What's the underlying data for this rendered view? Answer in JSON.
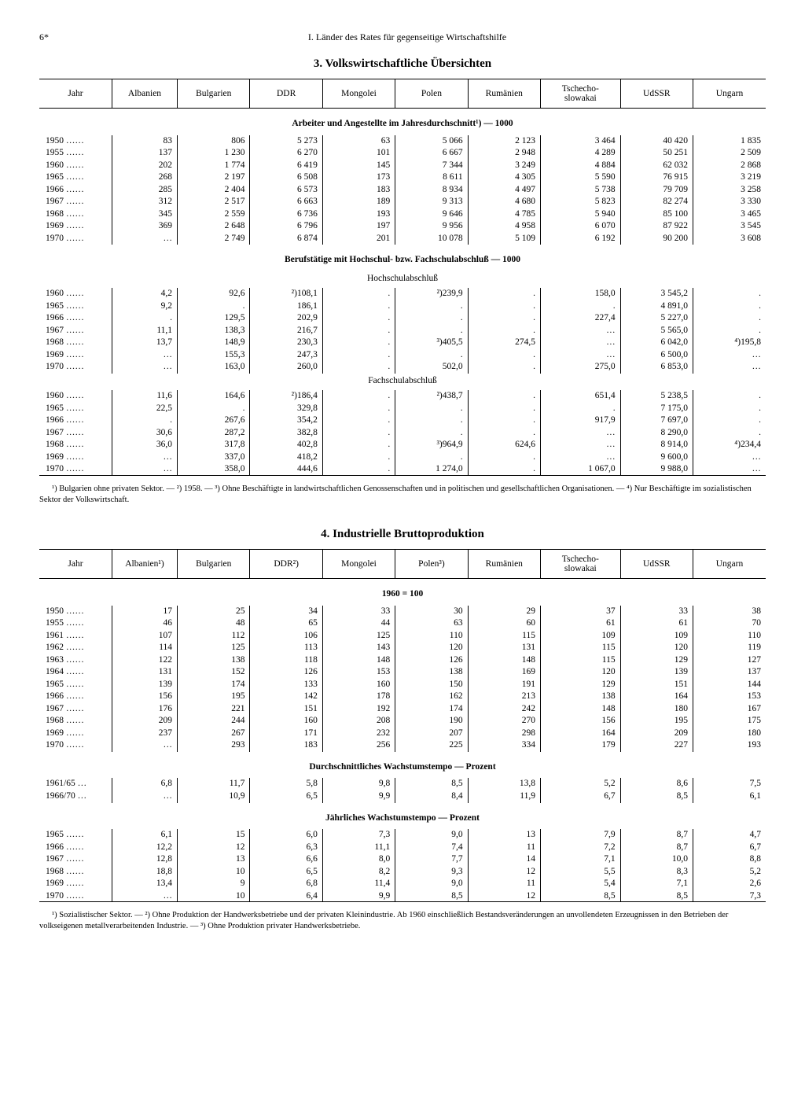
{
  "page_number": "6*",
  "header": "I. Länder des Rates für gegenseitige Wirtschaftshilfe",
  "section3": {
    "title": "3. Volkswirtschaftliche Übersichten",
    "columns": [
      "Jahr",
      "Albanien",
      "Bulgarien",
      "DDR",
      "Mongolei",
      "Polen",
      "Rumänien",
      "Tschecho-slowakai",
      "UdSSR",
      "Ungarn"
    ],
    "block1": {
      "heading": "Arbeiter und Angestellte im Jahresdurchschnitt¹)  —  1000",
      "rows": [
        [
          "1950  ……",
          "83",
          "806",
          "5 273",
          "63",
          "5 066",
          "2 123",
          "3 464",
          "40 420",
          "1 835"
        ],
        [
          "1955  ……",
          "137",
          "1 230",
          "6 270",
          "101",
          "6 667",
          "2 948",
          "4 289",
          "50 251",
          "2 509"
        ],
        [
          "1960  ……",
          "202",
          "1 774",
          "6 419",
          "145",
          "7 344",
          "3 249",
          "4 884",
          "62 032",
          "2 868"
        ],
        [
          "1965  ……",
          "268",
          "2 197",
          "6 508",
          "173",
          "8 611",
          "4 305",
          "5 590",
          "76 915",
          "3 219"
        ],
        [
          "1966  ……",
          "285",
          "2 404",
          "6 573",
          "183",
          "8 934",
          "4 497",
          "5 738",
          "79 709",
          "3 258"
        ],
        [
          "1967  ……",
          "312",
          "2 517",
          "6 663",
          "189",
          "9 313",
          "4 680",
          "5 823",
          "82 274",
          "3 330"
        ],
        [
          "1968  ……",
          "345",
          "2 559",
          "6 736",
          "193",
          "9 646",
          "4 785",
          "5 940",
          "85 100",
          "3 465"
        ],
        [
          "1969  ……",
          "369",
          "2 648",
          "6 796",
          "197",
          "9 956",
          "4 958",
          "6 070",
          "87 922",
          "3 545"
        ],
        [
          "1970  ……",
          "…",
          "2 749",
          "6 874",
          "201",
          "10 078",
          "5 109",
          "6 192",
          "90 200",
          "3 608"
        ]
      ]
    },
    "block2": {
      "heading": "Berufstätige mit Hochschul- bzw. Fachschulabschluß  —  1000",
      "sub1": "Hochschulabschluß",
      "rows1": [
        [
          "1960  ……",
          "4,2",
          "92,6",
          "²)108,1",
          ".",
          "²)239,9",
          ".",
          "158,0",
          "3 545,2",
          "."
        ],
        [
          "1965  ……",
          "9,2",
          ".",
          "186,1",
          ".",
          ".",
          ".",
          ".",
          "4 891,0",
          "."
        ],
        [
          "1966  ……",
          ".",
          "129,5",
          "202,9",
          ".",
          ".",
          ".",
          "227,4",
          "5 227,0",
          "."
        ],
        [
          "1967  ……",
          "11,1",
          "138,3",
          "216,7",
          ".",
          ".",
          ".",
          "…",
          "5 565,0",
          "."
        ],
        [
          "1968  ……",
          "13,7",
          "148,9",
          "230,3",
          ".",
          "³)405,5",
          "274,5",
          "…",
          "6 042,0",
          "⁴)195,8"
        ],
        [
          "1969  ……",
          "…",
          "155,3",
          "247,3",
          ".",
          ".",
          ".",
          "…",
          "6 500,0",
          "…"
        ],
        [
          "1970  ……",
          "…",
          "163,0",
          "260,0",
          ".",
          "502,0",
          ".",
          "275,0",
          "6 853,0",
          "…"
        ]
      ],
      "sub2": "Fachschulabschluß",
      "rows2": [
        [
          "1960  ……",
          "11,6",
          "164,6",
          "²)186,4",
          ".",
          "²)438,7",
          ".",
          "651,4",
          "5 238,5",
          "."
        ],
        [
          "1965  ……",
          "22,5",
          ".",
          "329,8",
          ".",
          ".",
          ".",
          ".",
          "7 175,0",
          "."
        ],
        [
          "1966  ……",
          ".",
          "267,6",
          "354,2",
          ".",
          ".",
          ".",
          "917,9",
          "7 697,0",
          "."
        ],
        [
          "1967  ……",
          "30,6",
          "287,2",
          "382,8",
          ".",
          ".",
          ".",
          "…",
          "8 290,0",
          "."
        ],
        [
          "1968  ……",
          "36,0",
          "317,8",
          "402,8",
          ".",
          "³)964,9",
          "624,6",
          "…",
          "8 914,0",
          "⁴)234,4"
        ],
        [
          "1969  ……",
          "…",
          "337,0",
          "418,2",
          ".",
          ".",
          ".",
          "…",
          "9 600,0",
          "…"
        ],
        [
          "1970  ……",
          "…",
          "358,0",
          "444,6",
          ".",
          "1 274,0",
          ".",
          "1 067,0",
          "9 988,0",
          "…"
        ]
      ]
    },
    "footnotes": "¹) Bulgarien ohne privaten Sektor.  —  ²) 1958.  —  ³) Ohne Beschäftigte in landwirtschaftlichen Genossenschaften und in politischen und gesellschaftlichen Organisationen.  —  ⁴) Nur Beschäftigte im sozialistischen Sektor der Volkswirtschaft."
  },
  "section4": {
    "title": "4. Industrielle Bruttoproduktion",
    "columns": [
      "Jahr",
      "Albanien¹)",
      "Bulgarien",
      "DDR²)",
      "Mongolei",
      "Polen³)",
      "Rumänien",
      "Tschecho-slowakai",
      "UdSSR",
      "Ungarn"
    ],
    "block1": {
      "heading": "1960 = 100",
      "rows": [
        [
          "1950  ……",
          "17",
          "25",
          "34",
          "33",
          "30",
          "29",
          "37",
          "33",
          "38"
        ],
        [
          "1955  ……",
          "46",
          "48",
          "65",
          "44",
          "63",
          "60",
          "61",
          "61",
          "70"
        ],
        [
          "1961  ……",
          "107",
          "112",
          "106",
          "125",
          "110",
          "115",
          "109",
          "109",
          "110"
        ],
        [
          "1962  ……",
          "114",
          "125",
          "113",
          "143",
          "120",
          "131",
          "115",
          "120",
          "119"
        ],
        [
          "1963  ……",
          "122",
          "138",
          "118",
          "148",
          "126",
          "148",
          "115",
          "129",
          "127"
        ],
        [
          "1964  ……",
          "131",
          "152",
          "126",
          "153",
          "138",
          "169",
          "120",
          "139",
          "137"
        ],
        [
          "1965  ……",
          "139",
          "174",
          "133",
          "160",
          "150",
          "191",
          "129",
          "151",
          "144"
        ],
        [
          "1966  ……",
          "156",
          "195",
          "142",
          "178",
          "162",
          "213",
          "138",
          "164",
          "153"
        ],
        [
          "1967  ……",
          "176",
          "221",
          "151",
          "192",
          "174",
          "242",
          "148",
          "180",
          "167"
        ],
        [
          "1968  ……",
          "209",
          "244",
          "160",
          "208",
          "190",
          "270",
          "156",
          "195",
          "175"
        ],
        [
          "1969  ……",
          "237",
          "267",
          "171",
          "232",
          "207",
          "298",
          "164",
          "209",
          "180"
        ],
        [
          "1970  ……",
          "…",
          "293",
          "183",
          "256",
          "225",
          "334",
          "179",
          "227",
          "193"
        ]
      ]
    },
    "block2": {
      "heading": "Durchschnittliches Wachstumstempo  —  Prozent",
      "rows": [
        [
          "1961/65  …",
          "6,8",
          "11,7",
          "5,8",
          "9,8",
          "8,5",
          "13,8",
          "5,2",
          "8,6",
          "7,5"
        ],
        [
          "1966/70  …",
          "…",
          "10,9",
          "6,5",
          "9,9",
          "8,4",
          "11,9",
          "6,7",
          "8,5",
          "6,1"
        ]
      ]
    },
    "block3": {
      "heading": "Jährliches Wachstumstempo  —  Prozent",
      "rows": [
        [
          "1965  ……",
          "6,1",
          "15",
          "6,0",
          "7,3",
          "9,0",
          "13",
          "7,9",
          "8,7",
          "4,7"
        ],
        [
          "1966  ……",
          "12,2",
          "12",
          "6,3",
          "11,1",
          "7,4",
          "11",
          "7,2",
          "8,7",
          "6,7"
        ],
        [
          "1967  ……",
          "12,8",
          "13",
          "6,6",
          "8,0",
          "7,7",
          "14",
          "7,1",
          "10,0",
          "8,8"
        ],
        [
          "1968  ……",
          "18,8",
          "10",
          "6,5",
          "8,2",
          "9,3",
          "12",
          "5,5",
          "8,3",
          "5,2"
        ],
        [
          "1969  ……",
          "13,4",
          "9",
          "6,8",
          "11,4",
          "9,0",
          "11",
          "5,4",
          "7,1",
          "2,6"
        ],
        [
          "1970  ……",
          "…",
          "10",
          "6,4",
          "9,9",
          "8,5",
          "12",
          "8,5",
          "8,5",
          "7,3"
        ]
      ]
    },
    "footnotes": "¹) Sozialistischer Sektor.  —  ²) Ohne Produktion der Handwerksbetriebe und der privaten Kleinindustrie. Ab 1960 einschließlich Bestandsveränderungen an unvollendeten Erzeugnissen in den Betrieben der volkseigenen metallverarbeitenden Industrie.  —  ³) Ohne Produktion privater Handwerksbetriebe."
  }
}
